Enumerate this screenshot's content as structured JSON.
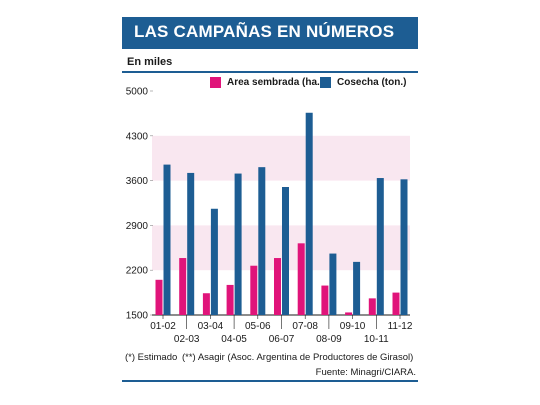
{
  "header": {
    "title": "LAS CAMPAÑAS EN NÚMEROS",
    "unit_label": "En miles"
  },
  "legend": [
    {
      "label": "Area sembrada (ha.)",
      "color": "#e0147a"
    },
    {
      "label": "Cosecha (ton.)",
      "color": "#1d5d93"
    }
  ],
  "footnotes": {
    "note1": "(*) Estimado",
    "note2": "(**) Asagir (Asoc. Argentina de Productores de Girasol)",
    "source": "Fuente: Minagri/CIARA."
  },
  "colors": {
    "accent": "#1d5d93",
    "area": "#e0147a",
    "cosecha": "#1d5d93",
    "band": "#f9e7f0"
  },
  "chart_data": {
    "type": "bar",
    "categories": [
      "01-02",
      "02-03",
      "03-04",
      "04-05",
      "05-06",
      "06-07",
      "07-08",
      "08-09",
      "09-10",
      "10-11",
      "11-12"
    ],
    "series": [
      {
        "name": "Area sembrada (ha.)",
        "values": [
          2050,
          2390,
          1840,
          1970,
          2270,
          2390,
          2620,
          1960,
          1540,
          1760,
          1850
        ]
      },
      {
        "name": "Cosecha (ton.)",
        "values": [
          3850,
          3720,
          3160,
          3710,
          3810,
          3500,
          4660,
          2460,
          2330,
          3640,
          3620
        ]
      }
    ],
    "yticks": [
      1500,
      2200,
      2900,
      3600,
      4300,
      5000
    ],
    "ylim": [
      1500,
      5000
    ],
    "xlabel": "",
    "ylabel": "",
    "grid": false,
    "legend_position": "top"
  }
}
